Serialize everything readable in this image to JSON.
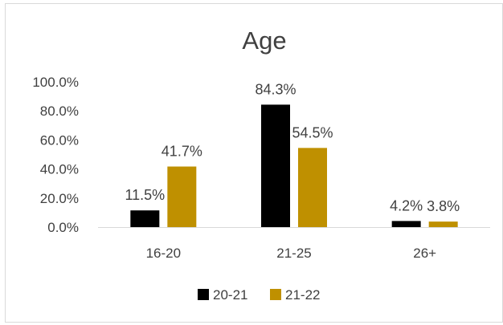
{
  "chart_data": {
    "type": "bar",
    "title": "Age",
    "xlabel": "",
    "ylabel": "",
    "categories": [
      "16-20",
      "21-25",
      "26+"
    ],
    "series": [
      {
        "name": "20-21",
        "values": [
          11.5,
          84.3,
          4.2
        ],
        "labels": [
          "11.5%",
          "84.3%",
          "4.2%"
        ],
        "color": "#000000"
      },
      {
        "name": "21-22",
        "values": [
          41.7,
          54.5,
          3.8
        ],
        "labels": [
          "41.7%",
          "54.5%",
          "3.8%"
        ],
        "color": "#bf9000"
      }
    ],
    "ylim": [
      0,
      100
    ],
    "yticks": [
      "0.0%",
      "20.0%",
      "40.0%",
      "60.0%",
      "80.0%",
      "100.0%"
    ],
    "grid": false,
    "legend_position": "bottom"
  }
}
